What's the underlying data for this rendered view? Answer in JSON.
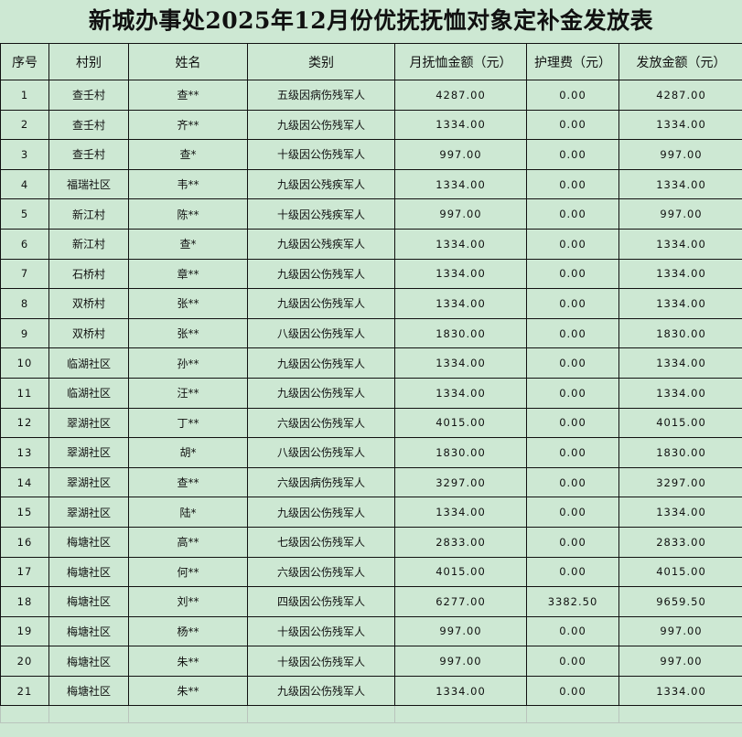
{
  "title": "新城办事处2025年12月份优抚抚恤对象定补金发放表",
  "headers": [
    "序号",
    "村别",
    "姓名",
    "类别",
    "月抚恤金额（元）",
    "护理费（元）",
    "发放金额（元）"
  ],
  "rows": [
    [
      "1",
      "查壬村",
      "查**",
      "五级因病伤残军人",
      "4287.00",
      "0.00",
      "4287.00"
    ],
    [
      "2",
      "查壬村",
      "齐**",
      "九级因公伤残军人",
      "1334.00",
      "0.00",
      "1334.00"
    ],
    [
      "3",
      "查壬村",
      "查*",
      "十级因公伤残军人",
      "997.00",
      "0.00",
      "997.00"
    ],
    [
      "4",
      "福瑞社区",
      "韦**",
      "九级因公残疾军人",
      "1334.00",
      "0.00",
      "1334.00"
    ],
    [
      "5",
      "新江村",
      "陈**",
      "十级因公残疾军人",
      "997.00",
      "0.00",
      "997.00"
    ],
    [
      "6",
      "新江村",
      "查*",
      "九级因公残疾军人",
      "1334.00",
      "0.00",
      "1334.00"
    ],
    [
      "7",
      "石桥村",
      "章**",
      "九级因公伤残军人",
      "1334.00",
      "0.00",
      "1334.00"
    ],
    [
      "8",
      "双桥村",
      "张**",
      "九级因公伤残军人",
      "1334.00",
      "0.00",
      "1334.00"
    ],
    [
      "9",
      "双桥村",
      "张**",
      "八级因公伤残军人",
      "1830.00",
      "0.00",
      "1830.00"
    ],
    [
      "10",
      "临湖社区",
      "孙**",
      "九级因公伤残军人",
      "1334.00",
      "0.00",
      "1334.00"
    ],
    [
      "11",
      "临湖社区",
      "汪**",
      "九级因公伤残军人",
      "1334.00",
      "0.00",
      "1334.00"
    ],
    [
      "12",
      "翠湖社区",
      "丁**",
      "六级因公伤残军人",
      "4015.00",
      "0.00",
      "4015.00"
    ],
    [
      "13",
      "翠湖社区",
      "胡*",
      "八级因公伤残军人",
      "1830.00",
      "0.00",
      "1830.00"
    ],
    [
      "14",
      "翠湖社区",
      "查**",
      "六级因病伤残军人",
      "3297.00",
      "0.00",
      "3297.00"
    ],
    [
      "15",
      "翠湖社区",
      "陆*",
      "九级因公伤残军人",
      "1334.00",
      "0.00",
      "1334.00"
    ],
    [
      "16",
      "梅塘社区",
      "高**",
      "七级因公伤残军人",
      "2833.00",
      "0.00",
      "2833.00"
    ],
    [
      "17",
      "梅塘社区",
      "何**",
      "六级因公伤残军人",
      "4015.00",
      "0.00",
      "4015.00"
    ],
    [
      "18",
      "梅塘社区",
      "刘**",
      "四级因公伤残军人",
      "6277.00",
      "3382.50",
      "9659.50"
    ],
    [
      "19",
      "梅塘社区",
      "杨**",
      "十级因公伤残军人",
      "997.00",
      "0.00",
      "997.00"
    ],
    [
      "20",
      "梅塘社区",
      "朱**",
      "十级因公伤残军人",
      "997.00",
      "0.00",
      "997.00"
    ],
    [
      "21",
      "梅塘社区",
      "朱**",
      "九级因公伤残军人",
      "1334.00",
      "0.00",
      "1334.00"
    ]
  ]
}
